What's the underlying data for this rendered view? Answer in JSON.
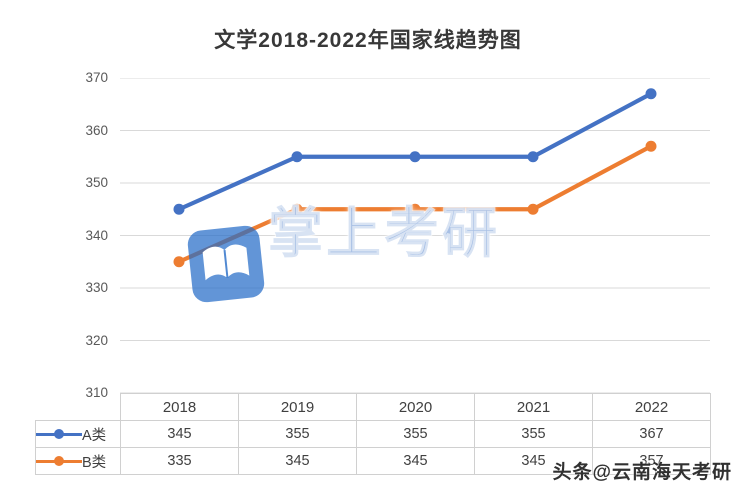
{
  "title": "文学2018-2022年国家线趋势图",
  "watermark": {
    "text": "掌上考研",
    "icon": "book-icon"
  },
  "overlay": {
    "text": "头条@云南海天考研"
  },
  "chart_data": {
    "type": "line",
    "categories": [
      "2018",
      "2019",
      "2020",
      "2021",
      "2022"
    ],
    "series": [
      {
        "name": "A类",
        "color": "#4472C4",
        "values": [
          345,
          355,
          355,
          355,
          367
        ]
      },
      {
        "name": "B类",
        "color": "#ED7D31",
        "values": [
          335,
          345,
          345,
          345,
          357
        ]
      }
    ],
    "title": "文学2018-2022年国家线趋势图",
    "xlabel": "",
    "ylabel": "",
    "ylim": [
      310,
      370
    ],
    "yticks": [
      370,
      360,
      350,
      340,
      330,
      320,
      310
    ],
    "grid": true,
    "legend_position": "table-left",
    "data_table_shown": true
  }
}
